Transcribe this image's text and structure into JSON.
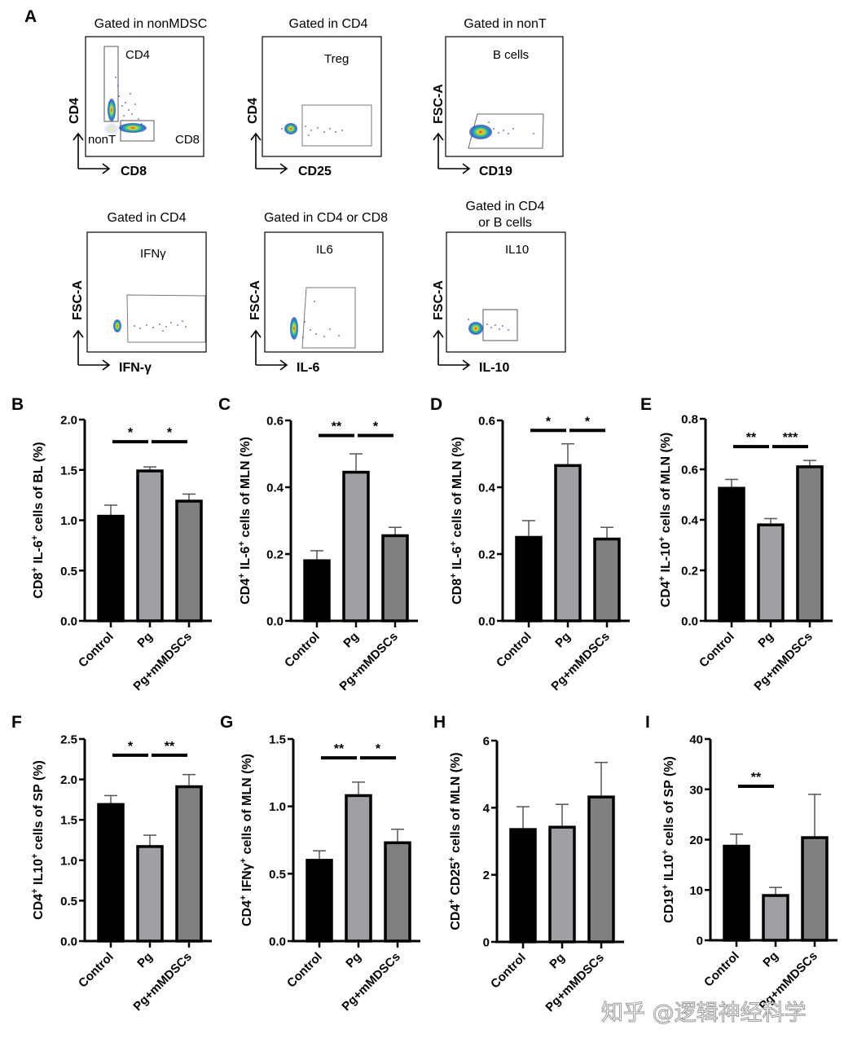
{
  "figure": {
    "panel_a": {
      "letter": "A",
      "plots": [
        {
          "title": "Gated in nonMDSC",
          "x_axis": "CD8",
          "y_axis": "CD4",
          "gates": [
            "CD4",
            "nonT",
            "CD8"
          ]
        },
        {
          "title": "Gated in CD4",
          "x_axis": "CD25",
          "y_axis": "CD4",
          "gates": [
            "Treg"
          ]
        },
        {
          "title": "Gated in nonT",
          "x_axis": "CD19",
          "y_axis": "FSC-A",
          "gates": [
            "B cells"
          ]
        },
        {
          "title": "Gated in CD4",
          "x_axis": "IFN-γ",
          "y_axis": "FSC-A",
          "gates": [
            "IFNγ"
          ]
        },
        {
          "title": "Gated in CD4 or CD8",
          "x_axis": "IL-6",
          "y_axis": "FSC-A",
          "gates": [
            "IL6"
          ]
        },
        {
          "title_lines": [
            "Gated in CD4",
            "or B cells"
          ],
          "x_axis": "IL-10",
          "y_axis": "FSC-A",
          "gates": [
            "IL10"
          ]
        }
      ]
    },
    "watermark": "知乎 @逻辑神经科学",
    "bar_colors": {
      "Control": "#000000",
      "Pg": "#a0a0a4",
      "Pg+mMDSCs": "#808080"
    }
  },
  "chart_data": [
    {
      "panel": "B",
      "type": "bar",
      "ylabel_parts": [
        [
          "CD8",
          "+"
        ],
        [
          " IL-6",
          "+"
        ],
        [
          " cells of BL (%)",
          ""
        ]
      ],
      "categories": [
        "Control",
        "Pg",
        "Pg+mMDSCs"
      ],
      "values": [
        1.04,
        1.49,
        1.19
      ],
      "errors": [
        0.11,
        0.04,
        0.07
      ],
      "ylim": [
        0,
        2.0
      ],
      "yticks": [
        "0.0",
        "0.5",
        "1.0",
        "1.5",
        "2.0"
      ],
      "ytick_values": [
        0,
        0.5,
        1.0,
        1.5,
        2.0
      ],
      "significance": [
        {
          "from": 0,
          "to": 1,
          "label": "*",
          "y": 1.78
        },
        {
          "from": 1,
          "to": 2,
          "label": "*",
          "y": 1.78
        }
      ]
    },
    {
      "panel": "C",
      "type": "bar",
      "ylabel_parts": [
        [
          "CD4",
          "+"
        ],
        [
          " IL-6",
          "+"
        ],
        [
          " cells of MLN (%)",
          ""
        ]
      ],
      "categories": [
        "Control",
        "Pg",
        "Pg+mMDSCs"
      ],
      "values": [
        0.18,
        0.445,
        0.255
      ],
      "errors": [
        0.03,
        0.055,
        0.025
      ],
      "ylim": [
        0,
        0.6
      ],
      "yticks": [
        "0.0",
        "0.2",
        "0.4",
        "0.6"
      ],
      "ytick_values": [
        0,
        0.2,
        0.4,
        0.6
      ],
      "significance": [
        {
          "from": 0,
          "to": 1,
          "label": "**",
          "y": 0.555
        },
        {
          "from": 1,
          "to": 2,
          "label": "*",
          "y": 0.555
        }
      ]
    },
    {
      "panel": "D",
      "type": "bar",
      "ylabel_parts": [
        [
          "CD8",
          "+"
        ],
        [
          " IL-6",
          "+"
        ],
        [
          " cells of MLN (%)",
          ""
        ]
      ],
      "categories": [
        "Control",
        "Pg",
        "Pg+mMDSCs"
      ],
      "values": [
        0.25,
        0.465,
        0.245
      ],
      "errors": [
        0.05,
        0.065,
        0.035
      ],
      "ylim": [
        0,
        0.6
      ],
      "yticks": [
        "0.0",
        "0.2",
        "0.4",
        "0.6"
      ],
      "ytick_values": [
        0,
        0.2,
        0.4,
        0.6
      ],
      "significance": [
        {
          "from": 0,
          "to": 1,
          "label": "*",
          "y": 0.57
        },
        {
          "from": 1,
          "to": 2,
          "label": "*",
          "y": 0.57
        }
      ]
    },
    {
      "panel": "E",
      "type": "bar",
      "ylabel_parts": [
        [
          "CD4",
          "+"
        ],
        [
          " IL-10",
          "+"
        ],
        [
          " cells of MLN (%)",
          ""
        ]
      ],
      "categories": [
        "Control",
        "Pg",
        "Pg+mMDSCs"
      ],
      "values": [
        0.525,
        0.38,
        0.61
      ],
      "errors": [
        0.035,
        0.025,
        0.025
      ],
      "ylim": [
        0,
        0.8
      ],
      "yticks": [
        "0.0",
        "0.2",
        "0.4",
        "0.6",
        "0.8"
      ],
      "ytick_values": [
        0,
        0.2,
        0.4,
        0.6,
        0.8
      ],
      "significance": [
        {
          "from": 0,
          "to": 1,
          "label": "**",
          "y": 0.69
        },
        {
          "from": 1,
          "to": 2,
          "label": "***",
          "y": 0.69
        }
      ]
    },
    {
      "panel": "F",
      "type": "bar",
      "ylabel_parts": [
        [
          "CD4",
          "+"
        ],
        [
          " IL10",
          "+"
        ],
        [
          " cells of SP (%)",
          ""
        ]
      ],
      "categories": [
        "Control",
        "Pg",
        "Pg+mMDSCs"
      ],
      "values": [
        1.69,
        1.17,
        1.91
      ],
      "errors": [
        0.11,
        0.14,
        0.15
      ],
      "ylim": [
        0,
        2.5
      ],
      "yticks": [
        "0.0",
        "0.5",
        "1.0",
        "1.5",
        "2.0",
        "2.5"
      ],
      "ytick_values": [
        0,
        0.5,
        1.0,
        1.5,
        2.0,
        2.5
      ],
      "significance": [
        {
          "from": 0,
          "to": 1,
          "label": "*",
          "y": 2.3
        },
        {
          "from": 1,
          "to": 2,
          "label": "**",
          "y": 2.3
        }
      ]
    },
    {
      "panel": "G",
      "type": "bar",
      "ylabel_parts": [
        [
          "CD4",
          "+"
        ],
        [
          " IFNγ",
          "+"
        ],
        [
          " cells of MLN (%)",
          ""
        ]
      ],
      "categories": [
        "Control",
        "Pg",
        "Pg+mMDSCs"
      ],
      "values": [
        0.6,
        1.08,
        0.73
      ],
      "errors": [
        0.07,
        0.1,
        0.1
      ],
      "ylim": [
        0,
        1.5
      ],
      "yticks": [
        "0.0",
        "0.5",
        "1.0",
        "1.5"
      ],
      "ytick_values": [
        0,
        0.5,
        1.0,
        1.5
      ],
      "significance": [
        {
          "from": 0,
          "to": 1,
          "label": "**",
          "y": 1.36
        },
        {
          "from": 1,
          "to": 2,
          "label": "*",
          "y": 1.36
        }
      ]
    },
    {
      "panel": "H",
      "type": "bar",
      "ylabel_parts": [
        [
          "CD4",
          "+"
        ],
        [
          " CD25",
          "+"
        ],
        [
          " cells of MLN (%)",
          ""
        ]
      ],
      "categories": [
        "Control",
        "Pg",
        "Pg+mMDSCs"
      ],
      "values": [
        3.35,
        3.42,
        4.32
      ],
      "errors": [
        0.68,
        0.68,
        1.03
      ],
      "ylim": [
        0,
        6
      ],
      "yticks": [
        "0",
        "2",
        "4",
        "6"
      ],
      "ytick_values": [
        0,
        2,
        4,
        6
      ],
      "significance": []
    },
    {
      "panel": "I",
      "type": "bar",
      "ylabel_parts": [
        [
          "CD19",
          "+"
        ],
        [
          " IL10",
          "+"
        ],
        [
          " cells of SP (%)",
          ""
        ]
      ],
      "categories": [
        "Control",
        "Pg",
        "Pg+mMDSCs"
      ],
      "values": [
        18.7,
        8.9,
        20.4
      ],
      "errors": [
        2.4,
        1.6,
        8.6
      ],
      "ylim": [
        0,
        40
      ],
      "yticks": [
        "0",
        "10",
        "20",
        "30",
        "40"
      ],
      "ytick_values": [
        0,
        10,
        20,
        30,
        40
      ],
      "significance": [
        {
          "from": 0,
          "to": 1,
          "label": "**",
          "y": 30.6
        }
      ]
    }
  ]
}
